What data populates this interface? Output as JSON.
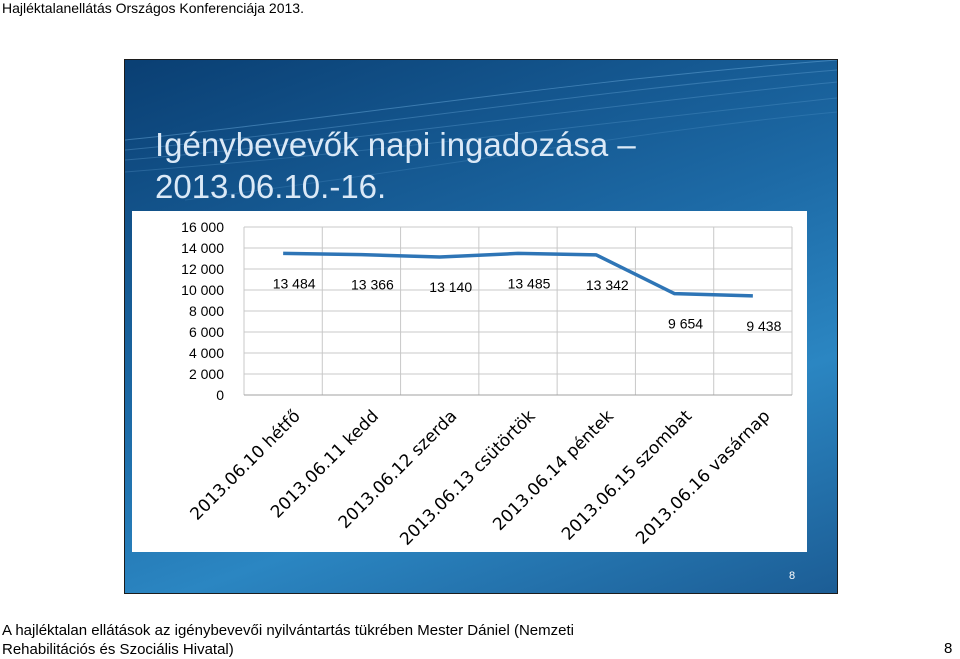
{
  "header": {
    "text": "Hajléktalanellátás Országos Konferenciája 2013."
  },
  "slide": {
    "title_line1": "Igénybevevők napi ingadozása –",
    "title_line2": "2013.06.10.-16.",
    "slide_number": "8"
  },
  "footer": {
    "line1": "A hajléktalan ellátások az igénybevevői nyilvántartás tükrében Mester Dániel (Nemzeti",
    "line2": "Rehabilitációs és Szociális Hivatal)",
    "page_number": "8"
  },
  "colors": {
    "series": "#2e75b6",
    "slide_bg": "#1d6aa6",
    "title": "#dbe9f7"
  },
  "chart_data": {
    "type": "line",
    "title": "",
    "xlabel": "",
    "ylabel": "",
    "ylim": [
      0,
      16000
    ],
    "yticks": [
      0,
      2000,
      4000,
      6000,
      8000,
      10000,
      12000,
      14000,
      16000
    ],
    "ytick_labels": [
      "0",
      "2 000",
      "4 000",
      "6 000",
      "8 000",
      "10 000",
      "12 000",
      "14 000",
      "16 000"
    ],
    "grid": true,
    "legend": "none",
    "categories": [
      "2013.06.10 hétfő",
      "2013.06.11 kedd",
      "2013.06.12 szerda",
      "2013.06.13 csütörtök",
      "2013.06.14 péntek",
      "2013.06.15 szombat",
      "2013.06.16 vasárnap"
    ],
    "series": [
      {
        "values": [
          13484,
          13366,
          13140,
          13485,
          13342,
          9654,
          9438
        ],
        "labels": [
          "13 484",
          "13 366",
          "13 140",
          "13 485",
          "13 342",
          "9 654",
          "9 438"
        ]
      }
    ]
  }
}
